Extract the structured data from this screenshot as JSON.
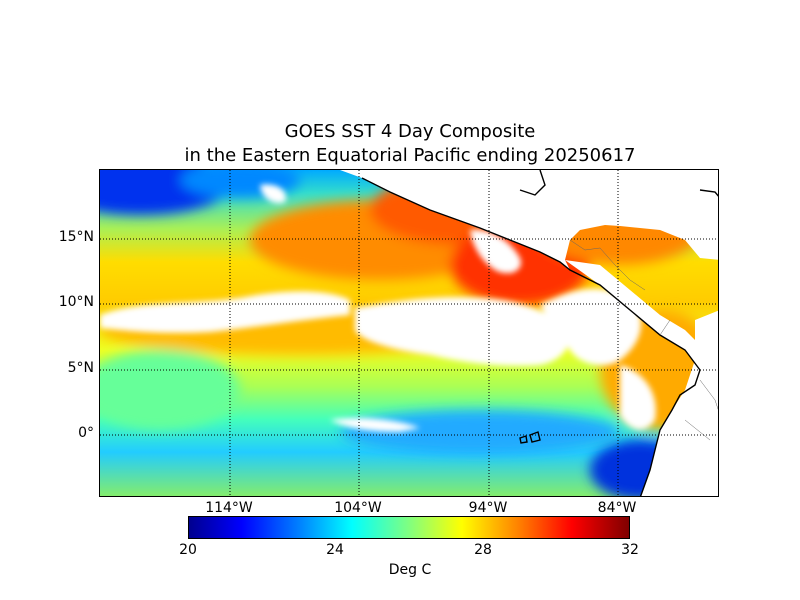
{
  "title": {
    "line1": "GOES SST 4 Day Composite",
    "line2": "in the Eastern Equatorial Pacific ending 20250617"
  },
  "map": {
    "lat_labels": [
      "15°N",
      "10°N",
      "5°N",
      "0°"
    ],
    "lon_labels": [
      "114°W",
      "104°W",
      "94°W",
      "84°W"
    ],
    "cloud_color": "#ffffff",
    "land_color": "#ffffff",
    "coast_color": "#000000"
  },
  "colorbar": {
    "ticks": [
      "20",
      "24",
      "28",
      "32"
    ],
    "label": "Deg C",
    "min": 20,
    "max": 32,
    "colormap": "jet"
  }
}
